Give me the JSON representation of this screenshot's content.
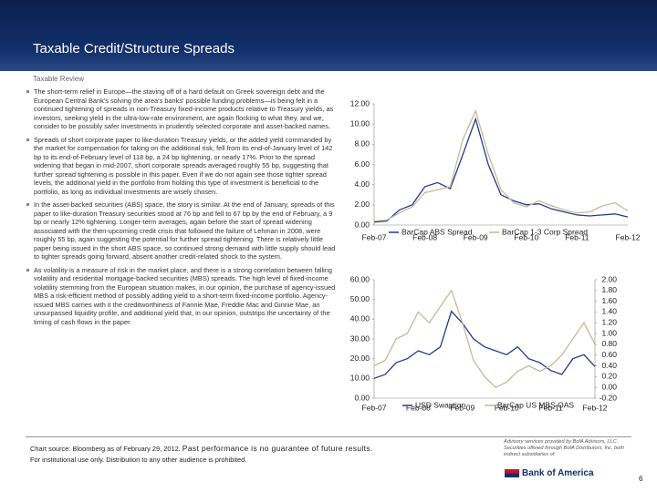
{
  "header": {
    "title": "Taxable Credit/Structure Spreads",
    "subtitle": "Taxable Review"
  },
  "bullets": [
    "The short-term relief in Europe—the staving off of a hard default on Greek sovereign debt and the European Central Bank's solving the area's banks' possible funding problems—is being felt in a continued tightening of spreads in non-Treasury fixed-income products relative to Treasury yields, as investors, seeking yield in the ultra-low-rate environment, are again flocking to what they, and we, consider to be possibly safer investments in prudently selected corporate and asset-backed names.",
    "Spreads of short corporate paper to like-duration Treasury yields, or the added yield commanded by the market for compensation for taking on the additional risk, fell from its end-of-January level of 142 bp to its end-of-February level of 118 bp, a 24 bp tightening, or nearly 17%. Prior to the spread widening that began in mid-2007, short corporate spreads averaged roughly 55 bp, suggesting that further spread tightening is possible in this paper. Even if we do not again see those tighter spread levels, the additional yield in the portfolio from holding this type of investment is beneficial to the portfolio, as long as individual investments are wisely chosen.",
    "In the asset-backed securities (ABS) space, the story is similar. At the end of January, spreads of this paper to like-duration Treasury securities stood at 76 bp and fell to 67 bp by the end of February, a 9 bp or nearly 12% tightening. Longer-term averages, again before the start of spread widening associated with the then-upcoming credit crisis that followed the failure of Lehman in 2008, were roughly 55 bp, again suggesting the potential for further spread tightening. There is relatively little paper being issued in the short ABS space, so continued strong demand with little supply should lead to tighter spreads going forward, absent another credit-related shock to the system.",
    "As volatility is a measure of risk in the market place, and there is a strong correlation between falling volatility and residential mortgage-backed securities (MBS) spreads. The high level of fixed-income volatility stemming from the European situation makes, in our opinion, the purchase of agency-issued MBS a risk-efficient method of possibly adding yield to a short-term fixed-income portfolio. Agency-issued MBS carries with it the creditworthiness of Fannie Mae, Freddie Mac and Ginnie Mae, an unsurpassed liquidity profile, and additional yield that, in our opinion, outstrips the uncertainty of the timing of cash flows in the paper."
  ],
  "chart_data": [
    {
      "type": "line",
      "categories": [
        "Feb-07",
        null,
        null,
        null,
        "Feb-08",
        null,
        null,
        null,
        "Feb-09",
        null,
        null,
        null,
        "Feb-10",
        null,
        null,
        null,
        "Feb-11",
        null,
        null,
        null,
        "Feb-12"
      ],
      "series": [
        {
          "name": "BarCap ABS Spread",
          "color": "#1f3d8a",
          "values": [
            0.3,
            0.4,
            1.5,
            2.0,
            3.8,
            4.2,
            3.6,
            7.0,
            10.5,
            6.0,
            3.0,
            2.4,
            2.0,
            2.1,
            1.6,
            1.3,
            1.0,
            0.9,
            1.0,
            1.1,
            0.8
          ]
        },
        {
          "name": "BarCap 1-3 Corp Spread",
          "color": "#c8b89a",
          "values": [
            0.4,
            0.5,
            1.2,
            1.8,
            3.2,
            3.5,
            3.8,
            8.5,
            11.3,
            7.0,
            3.5,
            2.2,
            1.8,
            2.4,
            1.9,
            1.5,
            1.2,
            1.3,
            1.9,
            2.2,
            1.4
          ]
        }
      ],
      "ylim": [
        0,
        12
      ],
      "yticks": [
        {
          "value": 0,
          "label": "0.00"
        },
        {
          "value": 2,
          "label": "2.00"
        },
        {
          "value": 4,
          "label": "4.00"
        },
        {
          "value": 6,
          "label": "6.00"
        },
        {
          "value": 8,
          "label": "8.00"
        },
        {
          "value": 10,
          "label": "10.00"
        },
        {
          "value": 12,
          "label": "12.00"
        }
      ]
    },
    {
      "type": "line",
      "categories": [
        "Feb-07",
        null,
        null,
        null,
        "Feb-08",
        null,
        null,
        null,
        "Feb-09",
        null,
        null,
        null,
        "Feb-10",
        null,
        null,
        null,
        "Feb-11",
        null,
        null,
        null,
        "Feb-12"
      ],
      "series": [
        {
          "name": "USD Swaption",
          "color": "#1f3d8a",
          "values": [
            10,
            12,
            18,
            20,
            24,
            22,
            26,
            44,
            38,
            30,
            26,
            24,
            22,
            26,
            20,
            18,
            14,
            12,
            20,
            22,
            16
          ]
        },
        {
          "name": "BarCap US MBS OAS",
          "color": "#c8b89a",
          "axis": "y2",
          "values": [
            0.4,
            0.5,
            0.9,
            1.0,
            1.4,
            1.2,
            1.5,
            1.8,
            1.2,
            0.5,
            0.2,
            0.0,
            0.1,
            0.3,
            0.4,
            0.3,
            0.4,
            0.6,
            0.9,
            1.2,
            0.8
          ]
        }
      ],
      "ylim": [
        0,
        60
      ],
      "yticks": [
        {
          "value": 0,
          "label": "0.00"
        },
        {
          "value": 10,
          "label": "10.00"
        },
        {
          "value": 20,
          "label": "20.00"
        },
        {
          "value": 30,
          "label": "30.00"
        },
        {
          "value": 40,
          "label": "40.00"
        },
        {
          "value": 50,
          "label": "50.00"
        },
        {
          "value": 60,
          "label": "60.00"
        }
      ],
      "y2lim": [
        -0.2,
        2.0
      ],
      "y2ticks": [
        {
          "value": -0.2,
          "label": "-0.20"
        },
        {
          "value": 0,
          "label": "0.00"
        },
        {
          "value": 0.2,
          "label": "0.20"
        },
        {
          "value": 0.4,
          "label": "0.40"
        },
        {
          "value": 0.6,
          "label": "0.60"
        },
        {
          "value": 0.8,
          "label": "0.80"
        },
        {
          "value": 1.0,
          "label": "1.00"
        },
        {
          "value": 1.2,
          "label": "1.20"
        },
        {
          "value": 1.4,
          "label": "1.40"
        },
        {
          "value": 1.6,
          "label": "1.60"
        },
        {
          "value": 1.8,
          "label": "1.80"
        },
        {
          "value": 2.0,
          "label": "2.00"
        }
      ]
    }
  ],
  "footer": {
    "source": "Chart source: Bloomberg as of February 29, 2012.",
    "performance": "Past performance is no guarantee of future results.",
    "usage": "For institutional use only. Distribution to any other audience is prohibited.",
    "advisory": "Advisory services provided by BofA Advisors, LLC. Securities offered through BofA Distributors, Inc. both indirect subsidiaries of",
    "logo": "Bank of America",
    "page": "6"
  }
}
